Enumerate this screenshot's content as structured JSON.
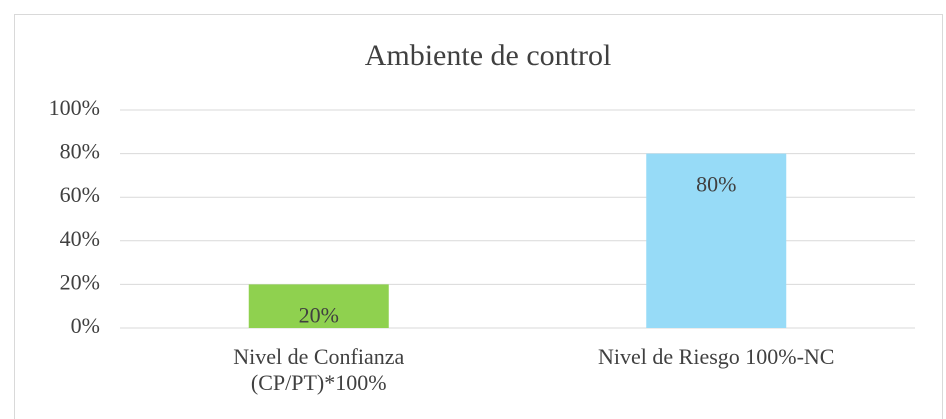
{
  "chart_data": {
    "type": "bar",
    "title": "Ambiente de control",
    "categories": [
      "Nivel de Confianza (CP/PT)*100%",
      "Nivel de Riesgo 100%-NC"
    ],
    "values": [
      20,
      80
    ],
    "value_labels": [
      "20%",
      "80%"
    ],
    "colors": [
      "#8fd14f",
      "#97dbf7"
    ],
    "ylim": [
      0,
      100
    ],
    "yticks": [
      {
        "value": 0,
        "label": "0%"
      },
      {
        "value": 20,
        "label": "20%"
      },
      {
        "value": 40,
        "label": "40%"
      },
      {
        "value": 60,
        "label": "60%"
      },
      {
        "value": 80,
        "label": "80%"
      },
      {
        "value": 100,
        "label": "100%"
      }
    ],
    "grid": true
  }
}
